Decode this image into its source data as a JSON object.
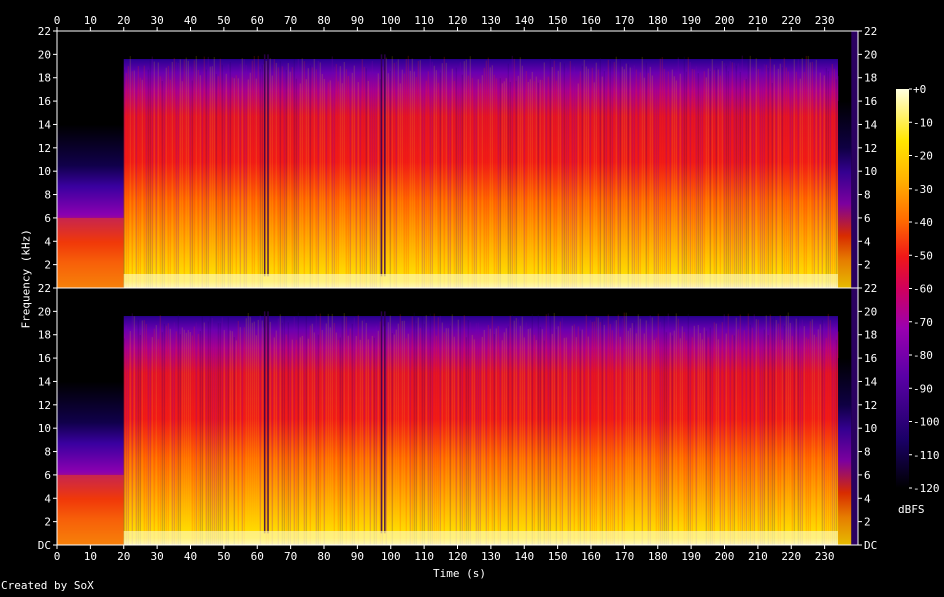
{
  "chart_data": {
    "type": "heatmap",
    "title": "",
    "xlabel": "Time (s)",
    "ylabel": "Frequency (kHz)",
    "xlim": [
      0,
      240
    ],
    "ylim": [
      0,
      22
    ],
    "x_ticks": [
      "0",
      "10",
      "20",
      "30",
      "40",
      "50",
      "60",
      "70",
      "80",
      "90",
      "100",
      "110",
      "120",
      "130",
      "140",
      "150",
      "160",
      "170",
      "180",
      "190",
      "200",
      "210",
      "220",
      "230"
    ],
    "y_ticks": [
      "DC",
      "2",
      "4",
      "6",
      "8",
      "10",
      "12",
      "14",
      "16",
      "18",
      "20",
      "22"
    ],
    "channels": [
      "channel-1",
      "channel-2"
    ],
    "colorbar": {
      "unit": "dBFS",
      "ticks": [
        "+0",
        "-10",
        "-20",
        "-30",
        "-40",
        "-50",
        "-60",
        "-70",
        "-80",
        "-90",
        "-100",
        "-110",
        "-120"
      ],
      "range": [
        -120,
        0
      ],
      "colors": [
        "#000000",
        "#1a0066",
        "#5a00a6",
        "#9a00b0",
        "#d0005c",
        "#f01818",
        "#ff6a00",
        "#ffb000",
        "#ffe600",
        "#ffffc8"
      ]
    },
    "credit": "Created by SoX"
  }
}
